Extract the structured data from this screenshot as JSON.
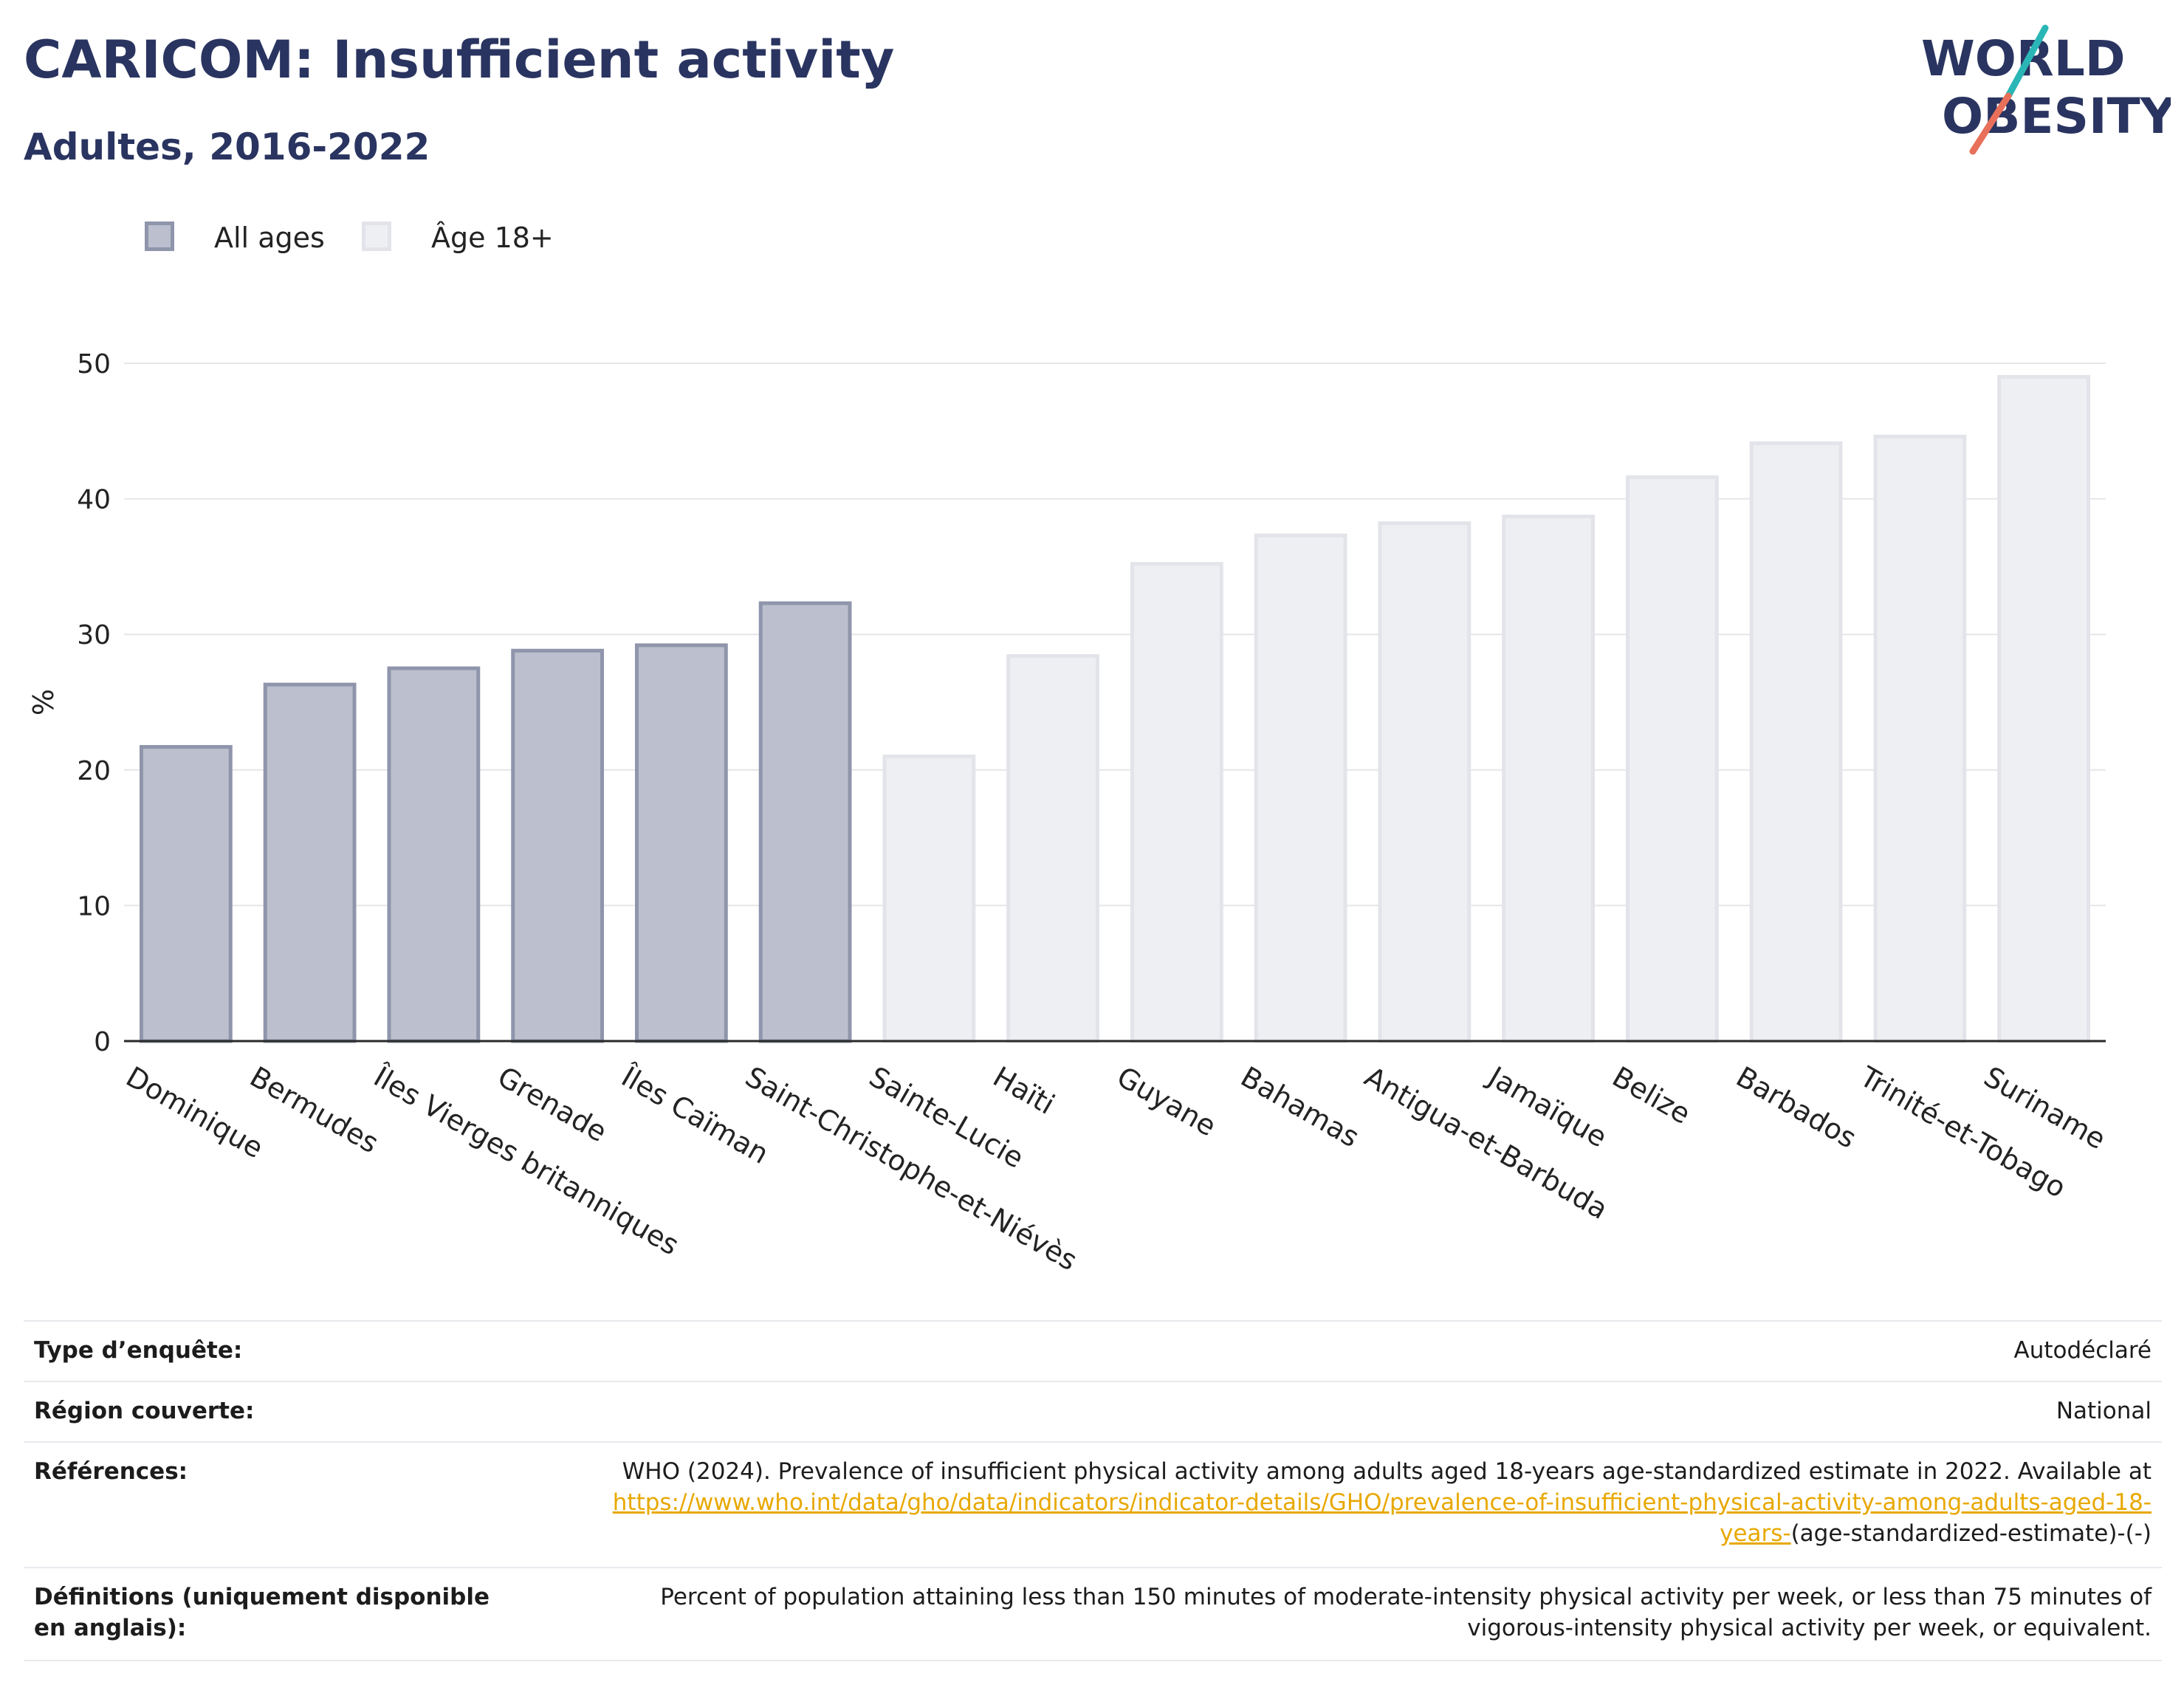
{
  "header": {
    "title": "CARICOM: Insufficient activity",
    "subtitle": "Adultes, 2016-2022"
  },
  "logo": {
    "line1": "WORLD",
    "line2": "OBESITY",
    "text_color": "#2a3460",
    "slash_teal": "#2bb6b6",
    "slash_coral": "#e8705a"
  },
  "legend": [
    {
      "label": "All ages",
      "fill": "#bcc0ce",
      "stroke": "#8f95ab"
    },
    {
      "label": "Âge 18+",
      "fill": "#eeeff3",
      "stroke": "#e3e4ea"
    }
  ],
  "chart_data": {
    "type": "bar",
    "ylabel": "%",
    "xlabel": "",
    "ylim": [
      0,
      50
    ],
    "yticks": [
      0,
      10,
      20,
      30,
      40,
      50
    ],
    "grid": true,
    "legend_position": "top-left",
    "series": [
      {
        "name": "All ages",
        "fill": "#bcc0ce",
        "stroke": "#8f95ab"
      },
      {
        "name": "Âge 18+",
        "fill": "#eeeff3",
        "stroke": "#e3e4ea"
      }
    ],
    "categories": [
      "Dominique",
      "Bermudes",
      "Îles Vierges britanniques",
      "Grenade",
      "Îles Caïman",
      "Saint-Christophe-et-Niévès",
      "Sainte-Lucie",
      "Haïti",
      "Guyane",
      "Bahamas",
      "Antigua-et-Barbuda",
      "Jamaïque",
      "Belize",
      "Barbados",
      "Trinité-et-Tobago",
      "Suriname"
    ],
    "values": [
      21.7,
      26.3,
      27.5,
      28.8,
      29.2,
      32.3,
      21.0,
      28.4,
      35.2,
      37.3,
      38.2,
      38.7,
      41.6,
      44.1,
      44.6,
      49.0
    ],
    "bar_series": [
      "All ages",
      "All ages",
      "All ages",
      "All ages",
      "All ages",
      "All ages",
      "Âge 18+",
      "Âge 18+",
      "Âge 18+",
      "Âge 18+",
      "Âge 18+",
      "Âge 18+",
      "Âge 18+",
      "Âge 18+",
      "Âge 18+",
      "Âge 18+"
    ]
  },
  "info": {
    "survey_type_label": "Type d’enquête:",
    "survey_type_value": "Autodéclaré",
    "region_label": "Région couverte:",
    "region_value": "National",
    "references_label": "Références:",
    "references_text": "WHO (2024). Prevalence of insufficient physical activity among adults aged 18-years age-standardized estimate in 2022. Available at",
    "references_link": "https://www.who.int/data/gho/data/indicators/indicator-details/GHO/prevalence-of-insufficient-physical-activity-among-adults-aged-18-years-",
    "references_suffix": "(age-standardized-estimate)-(-)",
    "definitions_label": "Définitions (uniquement disponible en anglais):",
    "definitions_value": "Percent of population attaining less than 150 minutes of moderate-intensity physical activity per week, or less than 75 minutes of vigorous-intensity physical activity per week, or equivalent."
  }
}
